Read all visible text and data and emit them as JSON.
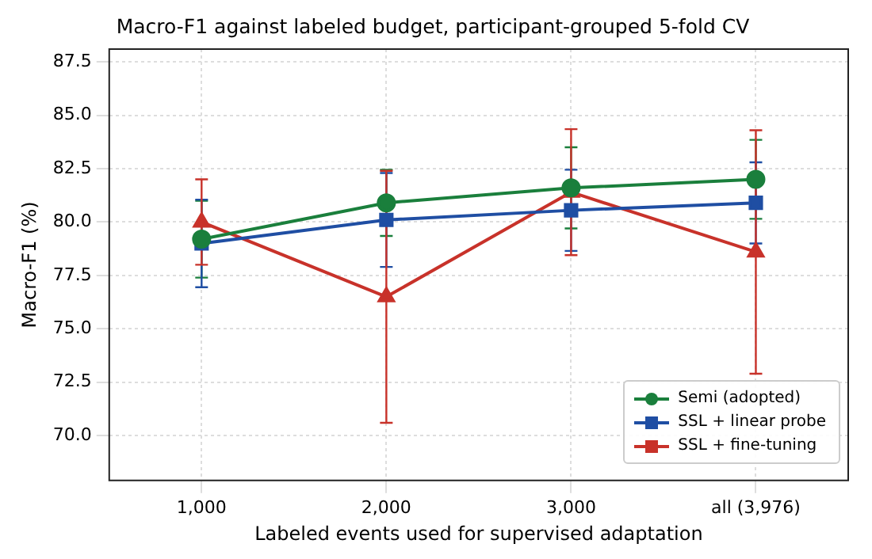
{
  "chart_data": {
    "type": "line",
    "title": "Macro-F1 against labeled budget, participant-grouped 5-fold CV",
    "xlabel": "Labeled events used for supervised adaptation",
    "ylabel": "Macro-F1 (%)",
    "categories": [
      "1,000",
      "2,000",
      "3,000",
      "all (3,976)"
    ],
    "series": [
      {
        "name": "Semi (adopted)",
        "color": "#1a7f3c",
        "marker": "circle",
        "values": [
          79.2,
          80.9,
          81.6,
          82.0
        ],
        "errors": [
          1.8,
          1.55,
          1.9,
          1.85
        ]
      },
      {
        "name": "SSL + linear probe",
        "color": "#1f4ea3",
        "marker": "square",
        "values": [
          79.0,
          80.1,
          80.55,
          80.9
        ],
        "errors": [
          2.05,
          2.2,
          1.9,
          1.9
        ]
      },
      {
        "name": "SSL + fine-tuning",
        "color": "#c8322a",
        "marker": "triangle",
        "values": [
          80.0,
          76.5,
          81.4,
          78.6
        ],
        "errors": [
          2.0,
          5.9,
          2.95,
          5.7
        ]
      }
    ],
    "ylim": [
      67.9,
      88.1
    ],
    "yticks": [
      {
        "value": 70,
        "label": "70.0"
      },
      {
        "value": 72.5,
        "label": "72.5"
      },
      {
        "value": 75,
        "label": "75.0"
      },
      {
        "value": 77.5,
        "label": "77.5"
      },
      {
        "value": 80,
        "label": "80.0"
      },
      {
        "value": 82.5,
        "label": "82.5"
      },
      {
        "value": 85,
        "label": "85.0"
      },
      {
        "value": 87.5,
        "label": "87.5"
      }
    ],
    "grid": true,
    "legend": "bottom right",
    "line_style": "solid"
  }
}
